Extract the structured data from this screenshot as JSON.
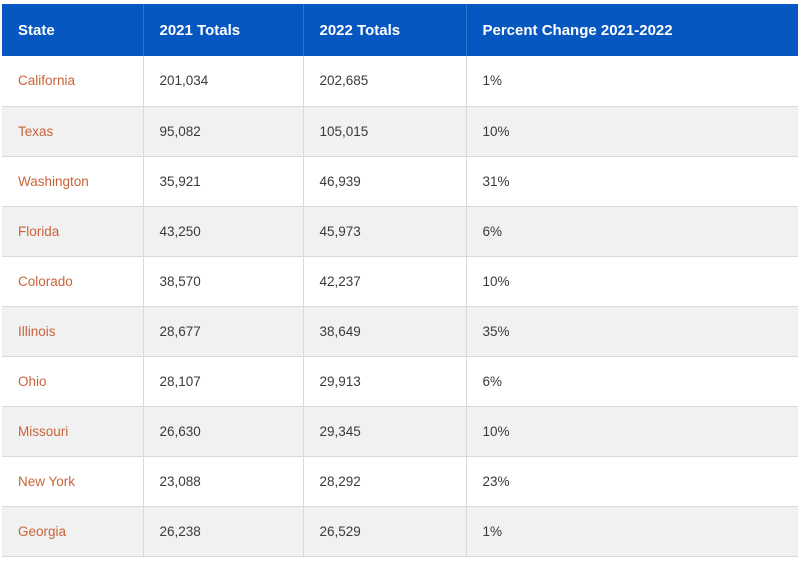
{
  "chart_data": {
    "type": "table",
    "columns": [
      "State",
      "2021 Totals",
      "2022 Totals",
      "Percent Change 2021-2022"
    ],
    "rows": [
      {
        "state": "California",
        "totals_2021": "201,034",
        "totals_2022": "202,685",
        "pct_change": "1%"
      },
      {
        "state": "Texas",
        "totals_2021": "95,082",
        "totals_2022": "105,015",
        "pct_change": "10%"
      },
      {
        "state": "Washington",
        "totals_2021": "35,921",
        "totals_2022": "46,939",
        "pct_change": "31%"
      },
      {
        "state": "Florida",
        "totals_2021": "43,250",
        "totals_2022": "45,973",
        "pct_change": "6%"
      },
      {
        "state": "Colorado",
        "totals_2021": "38,570",
        "totals_2022": "42,237",
        "pct_change": "10%"
      },
      {
        "state": "Illinois",
        "totals_2021": "28,677",
        "totals_2022": "38,649",
        "pct_change": "35%"
      },
      {
        "state": "Ohio",
        "totals_2021": "28,107",
        "totals_2022": "29,913",
        "pct_change": "6%"
      },
      {
        "state": "Missouri",
        "totals_2021": "26,630",
        "totals_2022": "29,345",
        "pct_change": "10%"
      },
      {
        "state": "New York",
        "totals_2021": "23,088",
        "totals_2022": "28,292",
        "pct_change": "23%"
      },
      {
        "state": "Georgia",
        "totals_2021": "26,238",
        "totals_2022": "26,529",
        "pct_change": "1%"
      }
    ]
  },
  "colors": {
    "header_bg": "#0757c0",
    "header_text": "#ffffff",
    "state_text": "#c8633a",
    "body_text": "#3a3a3a",
    "stripe_bg": "#f1f1f1",
    "row_border": "#d9d9d9"
  }
}
